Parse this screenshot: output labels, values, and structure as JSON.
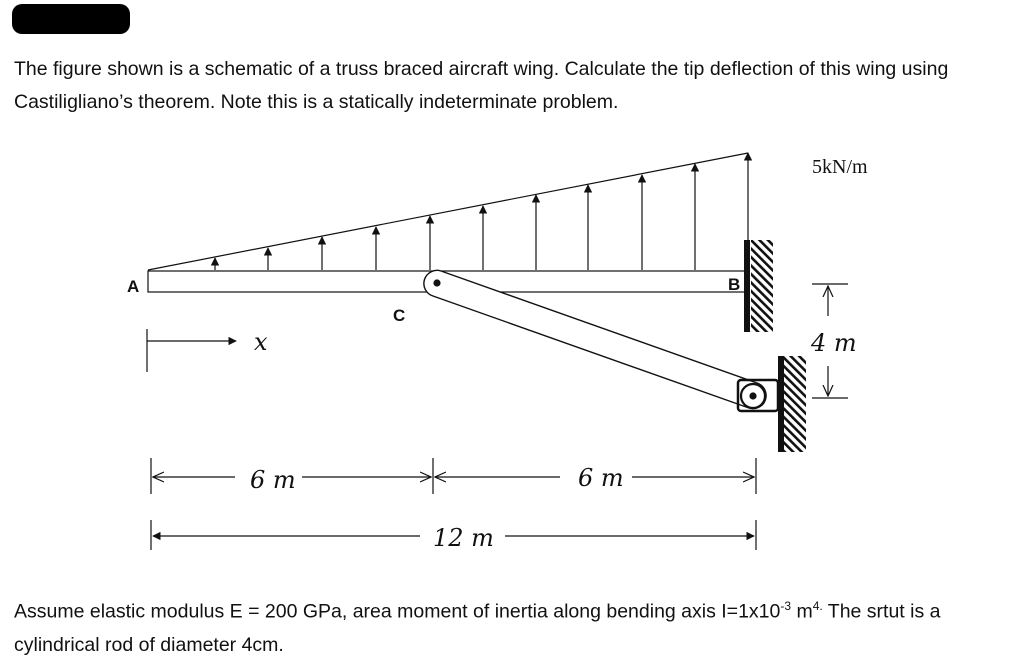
{
  "problem": {
    "intro": "The figure shown is a schematic of a truss braced aircraft wing. Calculate the tip deflection of this wing using Castiligliano’s theorem. Note this is a statically indeterminate problem.",
    "assume_a": "Assume elastic modulus E = 200 GPa, area moment of inertia along bending axis I=1x10",
    "exp_a": "-3",
    "assume_b": " m",
    "exp_b": "4.",
    "assume_c": " The srtut is a cylindrical rod of diameter 4cm."
  },
  "figure": {
    "point_a": "A",
    "point_b": "B",
    "point_c": "C",
    "x_label": "x",
    "load_label": "5kN/m",
    "height_label": "4 m",
    "dim_left": "6 m",
    "dim_right": "6 m",
    "dim_total": "12 m"
  }
}
